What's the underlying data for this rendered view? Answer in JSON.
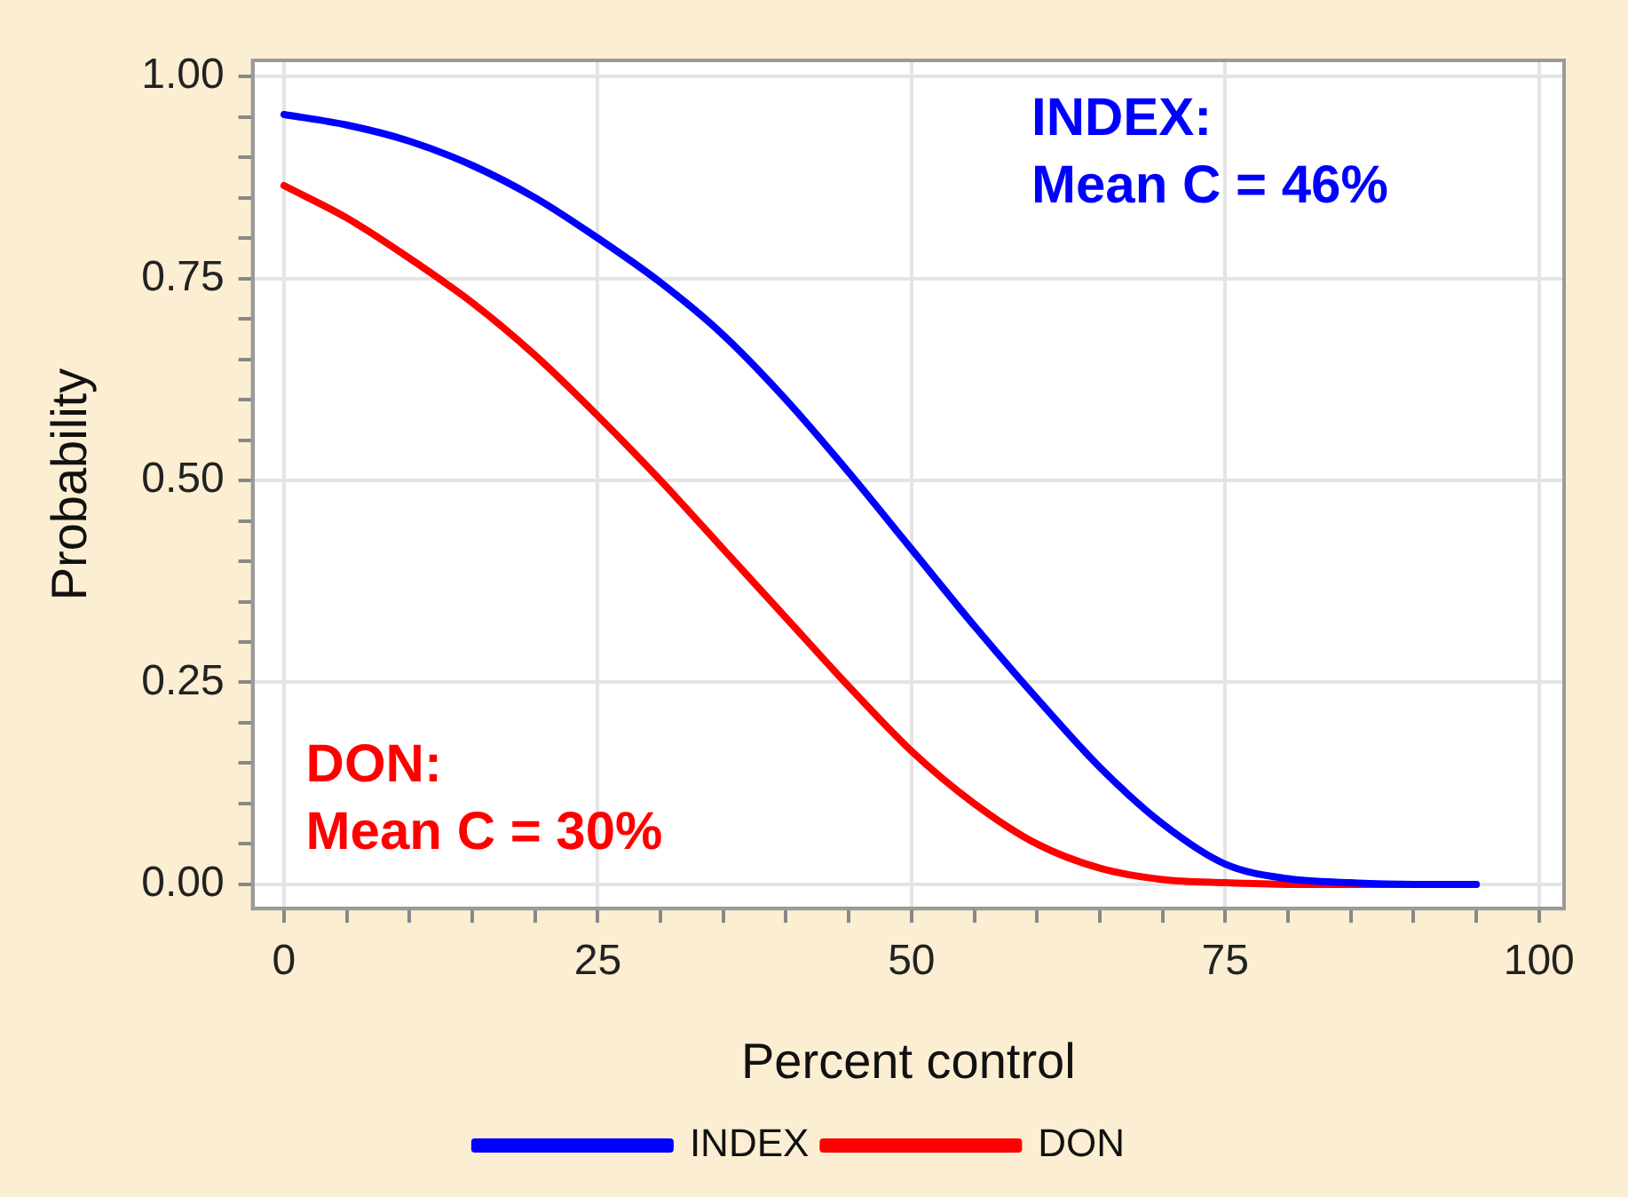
{
  "chart_data": {
    "type": "line",
    "xlabel": "Percent control",
    "ylabel": "Probability",
    "x": [
      0,
      5,
      10,
      15,
      20,
      25,
      30,
      35,
      40,
      45,
      50,
      55,
      60,
      65,
      70,
      75,
      80,
      85,
      90,
      95
    ],
    "series": [
      {
        "name": "INDEX",
        "color": "#0000ff",
        "values": [
          0.953,
          0.94,
          0.92,
          0.89,
          0.85,
          0.8,
          0.745,
          0.68,
          0.6,
          0.51,
          0.415,
          0.32,
          0.23,
          0.145,
          0.075,
          0.025,
          0.007,
          0.002,
          0,
          0
        ]
      },
      {
        "name": "DON",
        "color": "#ff0000",
        "values": [
          0.865,
          0.825,
          0.775,
          0.72,
          0.655,
          0.58,
          0.5,
          0.415,
          0.33,
          0.245,
          0.165,
          0.1,
          0.05,
          0.02,
          0.006,
          0.002,
          0,
          0,
          0,
          0
        ]
      }
    ],
    "xlim": [
      -2.5,
      102
    ],
    "ylim": [
      -0.03,
      1.02
    ],
    "xticks": [
      0,
      {
        "value": 5,
        "label": null
      },
      {
        "value": 10,
        "label": null
      },
      {
        "value": 15,
        "label": null
      },
      {
        "value": 20,
        "label": null
      },
      25,
      {
        "value": 30,
        "label": null
      },
      {
        "value": 35,
        "label": null
      },
      {
        "value": 40,
        "label": null
      },
      {
        "value": 45,
        "label": null
      },
      50,
      {
        "value": 55,
        "label": null
      },
      {
        "value": 60,
        "label": null
      },
      {
        "value": 65,
        "label": null
      },
      {
        "value": 70,
        "label": null
      },
      75,
      {
        "value": 80,
        "label": null
      },
      {
        "value": 85,
        "label": null
      },
      {
        "value": 90,
        "label": null
      },
      {
        "value": 95,
        "label": null
      },
      100
    ],
    "yticks": [
      {
        "value": 0,
        "label": "0.00"
      },
      {
        "value": 0.05,
        "label": null
      },
      {
        "value": 0.1,
        "label": null
      },
      {
        "value": 0.15,
        "label": null
      },
      {
        "value": 0.2,
        "label": null
      },
      {
        "value": 0.25,
        "label": "0.25"
      },
      {
        "value": 0.3,
        "label": null
      },
      {
        "value": 0.35,
        "label": null
      },
      {
        "value": 0.4,
        "label": null
      },
      {
        "value": 0.45,
        "label": null
      },
      {
        "value": 0.5,
        "label": "0.50"
      },
      {
        "value": 0.55,
        "label": null
      },
      {
        "value": 0.6,
        "label": null
      },
      {
        "value": 0.65,
        "label": null
      },
      {
        "value": 0.7,
        "label": null
      },
      {
        "value": 0.75,
        "label": "0.75"
      },
      {
        "value": 0.8,
        "label": null
      },
      {
        "value": 0.85,
        "label": null
      },
      {
        "value": 0.9,
        "label": null
      },
      {
        "value": 0.95,
        "label": null
      },
      {
        "value": 1,
        "label": "1.00"
      }
    ],
    "annotations": [
      "INDEX:\nMean C = 46%",
      "DON:\nMean C = 30%"
    ],
    "grid": true,
    "legend": "bottom",
    "marker": "none",
    "line_style": "solid"
  }
}
